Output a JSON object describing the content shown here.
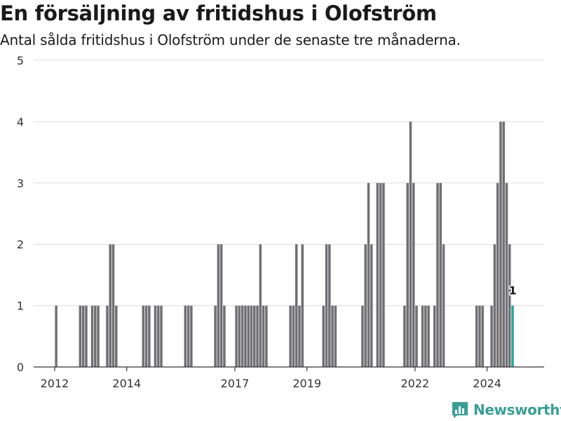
{
  "header": {
    "title": "En försäljning av fritidshus i Olofström",
    "subtitle": "Antal sålda fritidshus i Olofström under de senaste tre månaderna."
  },
  "brand": {
    "name": "Newsworthy",
    "color": "#3a9e95"
  },
  "chart_data": {
    "type": "bar",
    "title": "En försäljning av fritidshus i Olofström",
    "subtitle": "Antal sålda fritidshus i Olofström under de senaste tre månaderna.",
    "xlabel": "",
    "ylabel": "",
    "ylim": [
      0,
      5
    ],
    "yticks": [
      "0",
      "1",
      "2",
      "3",
      "4",
      "5"
    ],
    "xticks": [
      {
        "label": "2012",
        "date": "2012-01"
      },
      {
        "label": "2014",
        "date": "2014-01"
      },
      {
        "label": "2017",
        "date": "2017-01"
      },
      {
        "label": "2019",
        "date": "2019-01"
      },
      {
        "label": "2022",
        "date": "2022-01"
      },
      {
        "label": "2024",
        "date": "2024-01"
      }
    ],
    "x_range": [
      "2011-06",
      "2025-08"
    ],
    "grid": true,
    "bar_color": "#707074",
    "highlight_color": "#26a69a",
    "highlight_label": "1",
    "categories": [
      "2012-01",
      "2012-09",
      "2012-10",
      "2012-11",
      "2013-01",
      "2013-02",
      "2013-03",
      "2013-06",
      "2013-07",
      "2013-08",
      "2013-09",
      "2014-06",
      "2014-07",
      "2014-08",
      "2014-10",
      "2014-11",
      "2014-12",
      "2015-08",
      "2015-09",
      "2015-10",
      "2016-06",
      "2016-07",
      "2016-08",
      "2016-09",
      "2017-01",
      "2017-02",
      "2017-03",
      "2017-04",
      "2017-05",
      "2017-06",
      "2017-07",
      "2017-08",
      "2017-09",
      "2017-10",
      "2017-11",
      "2018-07",
      "2018-08",
      "2018-09",
      "2018-10",
      "2018-11",
      "2019-06",
      "2019-07",
      "2019-08",
      "2019-09",
      "2019-10",
      "2020-07",
      "2020-08",
      "2020-09",
      "2020-10",
      "2020-12",
      "2021-01",
      "2021-02",
      "2021-09",
      "2021-10",
      "2021-11",
      "2021-12",
      "2022-01",
      "2022-03",
      "2022-04",
      "2022-05",
      "2022-07",
      "2022-08",
      "2022-09",
      "2022-10",
      "2023-09",
      "2023-10",
      "2023-11",
      "2024-02",
      "2024-03",
      "2024-04",
      "2024-05",
      "2024-06",
      "2024-07",
      "2024-08",
      "2024-09"
    ],
    "values": [
      1,
      1,
      1,
      1,
      1,
      1,
      1,
      1,
      2,
      2,
      1,
      1,
      1,
      1,
      1,
      1,
      1,
      1,
      1,
      1,
      1,
      2,
      2,
      1,
      1,
      1,
      1,
      1,
      1,
      1,
      1,
      1,
      2,
      1,
      1,
      1,
      1,
      2,
      1,
      2,
      1,
      2,
      2,
      1,
      1,
      1,
      2,
      3,
      2,
      3,
      3,
      3,
      1,
      3,
      4,
      3,
      1,
      1,
      1,
      1,
      1,
      3,
      3,
      2,
      1,
      1,
      1,
      1,
      2,
      3,
      4,
      4,
      3,
      2,
      1
    ],
    "highlight_index": 74
  }
}
